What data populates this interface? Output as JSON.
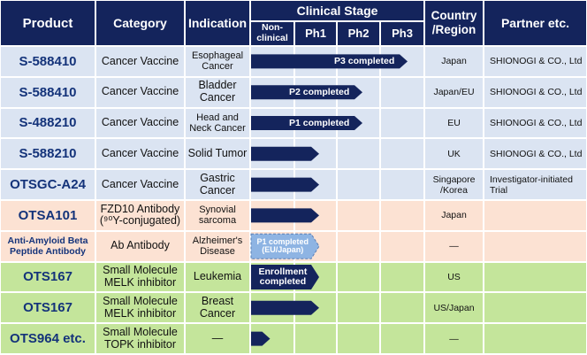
{
  "header": {
    "product": "Product",
    "category": "Category",
    "indication": "Indication",
    "clinical_stage": "Clinical Stage",
    "country": "Country\n/Region",
    "partner": "Partner etc.",
    "stages": [
      "Non-\nclinical",
      "Ph1",
      "Ph2",
      "Ph3"
    ]
  },
  "colors": {
    "header": "#14245c",
    "blue_row": "#dbe4f2",
    "peach_row": "#fce2d3",
    "green_row": "#c4e59b",
    "bar": "#14245c",
    "bar_dashed": "#8eb4e3",
    "product_text": "#14337a"
  },
  "rows": [
    {
      "product": "S-588410",
      "category": "Cancer Vaccine",
      "indication": "Esophageal\nCancer",
      "country": "Japan",
      "partner": "SHIONOGI & CO., Ltd",
      "bar_stage": 3,
      "bar_label": "P3 completed",
      "bar_style": "solid",
      "group": "blue"
    },
    {
      "product": "S-588410",
      "category": "Cancer Vaccine",
      "indication": "Bladder\nCancer",
      "country": "Japan/EU",
      "partner": "SHIONOGI & CO., Ltd",
      "bar_stage": 2,
      "bar_label": "P2 completed",
      "bar_style": "solid",
      "group": "blue"
    },
    {
      "product": "S-488210",
      "category": "Cancer Vaccine",
      "indication": "Head and\nNeck Cancer",
      "country": "EU",
      "partner": "SHIONOGI & CO., Ltd",
      "bar_stage": 2,
      "bar_label": "P1 completed",
      "bar_style": "solid",
      "group": "blue"
    },
    {
      "product": "S-588210",
      "category": "Cancer Vaccine",
      "indication": "Solid Tumor",
      "country": "UK",
      "partner": "SHIONOGI & CO., Ltd",
      "bar_stage": 1,
      "bar_label": "",
      "bar_style": "solid",
      "group": "blue"
    },
    {
      "product": "OTSGC-A24",
      "category": "Cancer Vaccine",
      "indication": "Gastric\nCancer",
      "country": "Singapore\n/Korea",
      "partner": "Investigator-initiated\nTrial",
      "bar_stage": 1,
      "bar_label": "",
      "bar_style": "solid",
      "group": "blue"
    },
    {
      "product": "OTSA101",
      "category": "FZD10 Antibody\n(⁹⁰Y-conjugated)",
      "indication": "Synovial\nsarcoma",
      "country": "Japan",
      "partner": "",
      "bar_stage": 1,
      "bar_label": "",
      "bar_style": "solid",
      "group": "peach"
    },
    {
      "product": "Anti-Amyloid Beta\nPeptide Antibody",
      "category": "Ab Antibody",
      "indication": "Alzheimer's\nDisease",
      "country": "—",
      "partner": "",
      "bar_stage": 1,
      "bar_label": "P1 completed\n(EU/Japan)",
      "bar_style": "dashed",
      "group": "peach"
    },
    {
      "product": "OTS167",
      "category": "Small Molecule\nMELK inhibitor",
      "indication": "Leukemia",
      "country": "US",
      "partner": "",
      "bar_stage": 1,
      "bar_label": "Enrollment\ncompleted",
      "bar_style": "solid",
      "group": "green"
    },
    {
      "product": "OTS167",
      "category": "Small Molecule\nMELK inhibitor",
      "indication": "Breast\nCancer",
      "country": "US/Japan",
      "partner": "",
      "bar_stage": 1,
      "bar_label": "",
      "bar_style": "solid",
      "group": "green"
    },
    {
      "product": "OTS964 etc.",
      "category": "Small Molecule\nTOPK inhibitor",
      "indication": "—",
      "country": "—",
      "partner": "",
      "bar_stage": 0.45,
      "bar_label": "",
      "bar_style": "solid",
      "group": "green"
    }
  ]
}
